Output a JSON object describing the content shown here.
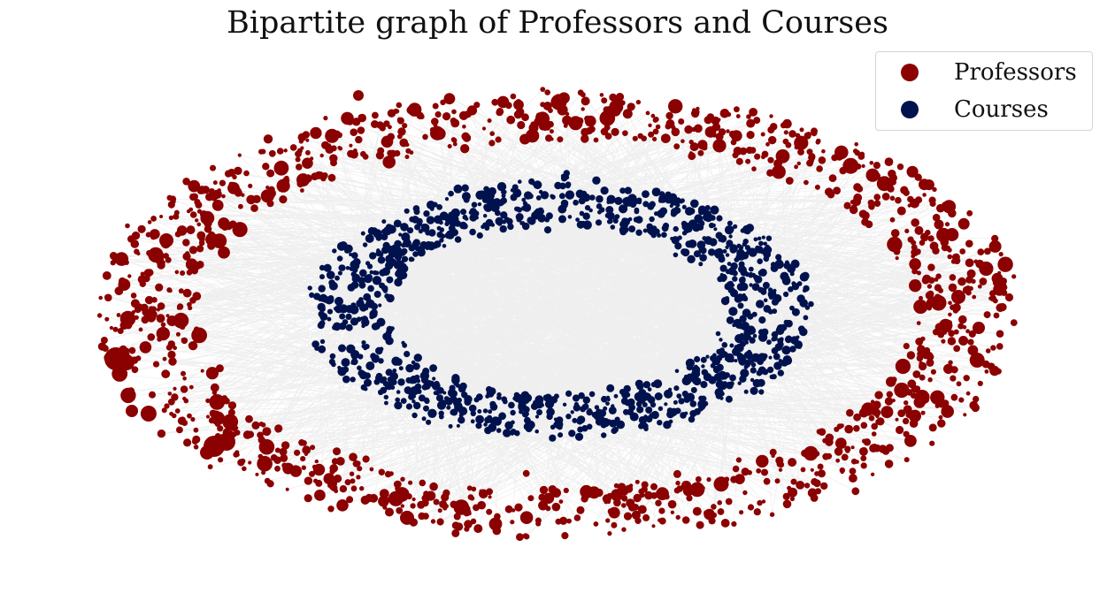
{
  "title": "Bipartite graph of Professors and Courses",
  "legend": {
    "items": [
      {
        "label": "Professors",
        "color": "#8b0000"
      },
      {
        "label": "Courses",
        "color": "#00124d"
      }
    ]
  },
  "colors": {
    "edge": "#9e9e9e",
    "professor": "#8b0000",
    "course": "#00124d",
    "legend_border": "#d4d4d4"
  }
}
